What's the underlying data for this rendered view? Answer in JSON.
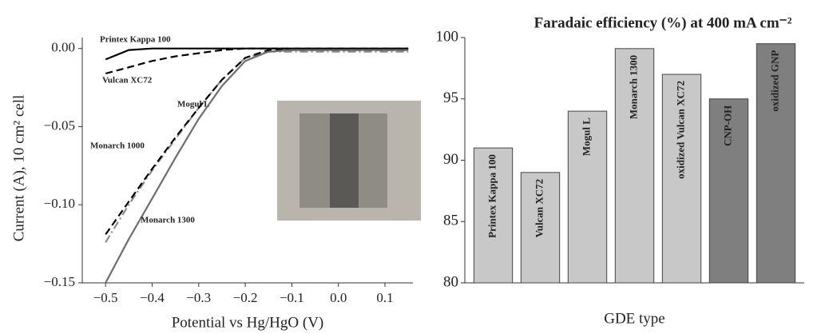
{
  "chart_data": [
    {
      "type": "line",
      "xlabel": "Potential vs Hg/HgO (V)",
      "ylabel": "Current (A), 10 cm² cell",
      "x": [
        -0.5,
        -0.45,
        -0.4,
        -0.35,
        -0.3,
        -0.25,
        -0.2,
        -0.15,
        -0.1,
        -0.05,
        0,
        0.05,
        0.1,
        0.15
      ],
      "series": [
        {
          "name": "Printex Kappa 100",
          "color": "#000000",
          "style": "solid",
          "values": [
            -0.007,
            -0.001,
            0,
            0,
            0,
            0,
            0,
            0,
            0,
            0,
            0,
            0,
            0,
            0
          ]
        },
        {
          "name": "Vulcan XC72",
          "color": "#000000",
          "style": "dashed",
          "values": [
            -0.016,
            -0.012,
            -0.008,
            -0.005,
            -0.003,
            -0.001,
            0,
            0,
            0,
            0,
            0,
            0,
            0,
            0
          ]
        },
        {
          "name": "Mogul L",
          "color": "#8a8a8a",
          "style": "dashdot",
          "values": [
            -0.124,
            -0.1,
            -0.078,
            -0.058,
            -0.038,
            -0.02,
            -0.006,
            -0.002,
            -0.002,
            -0.002,
            -0.002,
            -0.002,
            -0.002,
            -0.002
          ]
        },
        {
          "name": "Monarch 1000",
          "color": "#000000",
          "style": "dashed",
          "values": [
            -0.119,
            -0.098,
            -0.077,
            -0.057,
            -0.038,
            -0.02,
            -0.006,
            -0.001,
            -0.001,
            -0.001,
            -0.001,
            -0.001,
            -0.001,
            -0.001
          ]
        },
        {
          "name": "Monarch 1300",
          "color": "#6e6e6e",
          "style": "solid",
          "values": [
            -0.15,
            -0.122,
            -0.096,
            -0.07,
            -0.045,
            -0.024,
            -0.008,
            -0.002,
            -0.001,
            -0.001,
            -0.001,
            -0.001,
            -0.001,
            -0.001
          ]
        }
      ],
      "xlim": [
        -0.55,
        0.16
      ],
      "ylim": [
        -0.15,
        0.007
      ],
      "xticks": [
        {
          "value": -0.5,
          "label": "−0.5"
        },
        {
          "value": -0.4,
          "label": "−0.4"
        },
        {
          "value": -0.3,
          "label": "−0.3"
        },
        {
          "value": -0.2,
          "label": "−0.2"
        },
        {
          "value": -0.1,
          "label": "−0.1"
        },
        {
          "value": 0,
          "label": "0.0"
        },
        0.1
      ],
      "yticks": [
        {
          "value": 0,
          "label": "0.00"
        },
        {
          "value": -0.05,
          "label": "−0.05"
        },
        {
          "value": -0.1,
          "label": "−0.10"
        },
        {
          "value": -0.15,
          "label": "−0.15"
        }
      ],
      "grid": false
    },
    {
      "type": "bar",
      "title": "Faradaic efficiency (%) at 400 mA cm⁻²",
      "xlabel": "GDE type",
      "categories": [
        "Printex Kappa 100",
        "Vulcan XC72",
        "Mogul L",
        "Monarch 1300",
        "oxidized Vulcan XC72",
        "CNP-OH",
        "oxidized GNP"
      ],
      "values": [
        91,
        89,
        94,
        99.1,
        97,
        95,
        99.5
      ],
      "colors": [
        "#c8c8c8",
        "#c8c8c8",
        "#c8c8c8",
        "#c8c8c8",
        "#c8c8c8",
        "#7f7f7f",
        "#7f7f7f"
      ],
      "ylim": [
        80,
        100
      ],
      "yticks": [
        80,
        85,
        90,
        95,
        100
      ],
      "grid": false
    }
  ]
}
